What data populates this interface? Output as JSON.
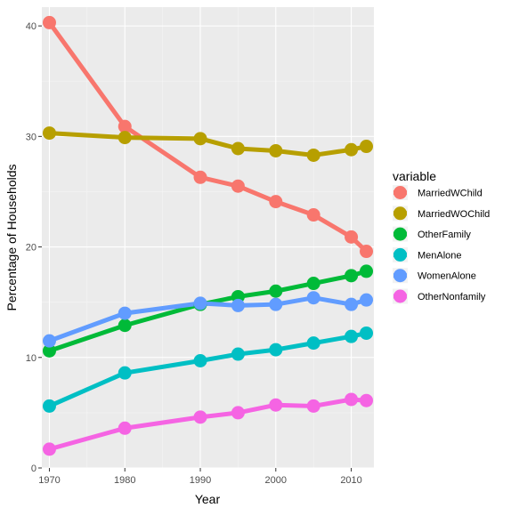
{
  "chart_data": {
    "type": "line",
    "title": "",
    "xlabel": "Year",
    "ylabel": "Percentage of Households",
    "x": [
      1970,
      1980,
      1990,
      1995,
      2000,
      2005,
      2010,
      2012
    ],
    "xticks": [
      1970,
      1980,
      1990,
      2000,
      2010
    ],
    "yticks": [
      0,
      10,
      20,
      30,
      40
    ],
    "xlim": [
      1969,
      2013
    ],
    "ylim": [
      0,
      41.7
    ],
    "grid": true,
    "legend": {
      "title": "variable",
      "position": "right"
    },
    "series": [
      {
        "name": "MarriedWChild",
        "color": "#F8766D",
        "values": [
          40.3,
          30.9,
          26.3,
          25.5,
          24.1,
          22.9,
          20.9,
          19.6
        ]
      },
      {
        "name": "MarriedWOChild",
        "color": "#B79F00",
        "values": [
          30.3,
          29.9,
          29.8,
          28.9,
          28.7,
          28.3,
          28.8,
          29.1
        ]
      },
      {
        "name": "OtherFamily",
        "color": "#00BA38",
        "values": [
          10.6,
          12.9,
          14.8,
          15.5,
          16.0,
          16.7,
          17.4,
          17.8
        ]
      },
      {
        "name": "MenAlone",
        "color": "#00BFC4",
        "values": [
          5.6,
          8.6,
          9.7,
          10.3,
          10.7,
          11.3,
          11.9,
          12.2
        ]
      },
      {
        "name": "WomenAlone",
        "color": "#619CFF",
        "values": [
          11.5,
          14.0,
          14.9,
          14.7,
          14.8,
          15.4,
          14.8,
          15.2
        ]
      },
      {
        "name": "OtherNonfamily",
        "color": "#F564E3",
        "values": [
          1.7,
          3.6,
          4.6,
          5.0,
          5.7,
          5.6,
          6.2,
          6.1
        ]
      }
    ]
  }
}
